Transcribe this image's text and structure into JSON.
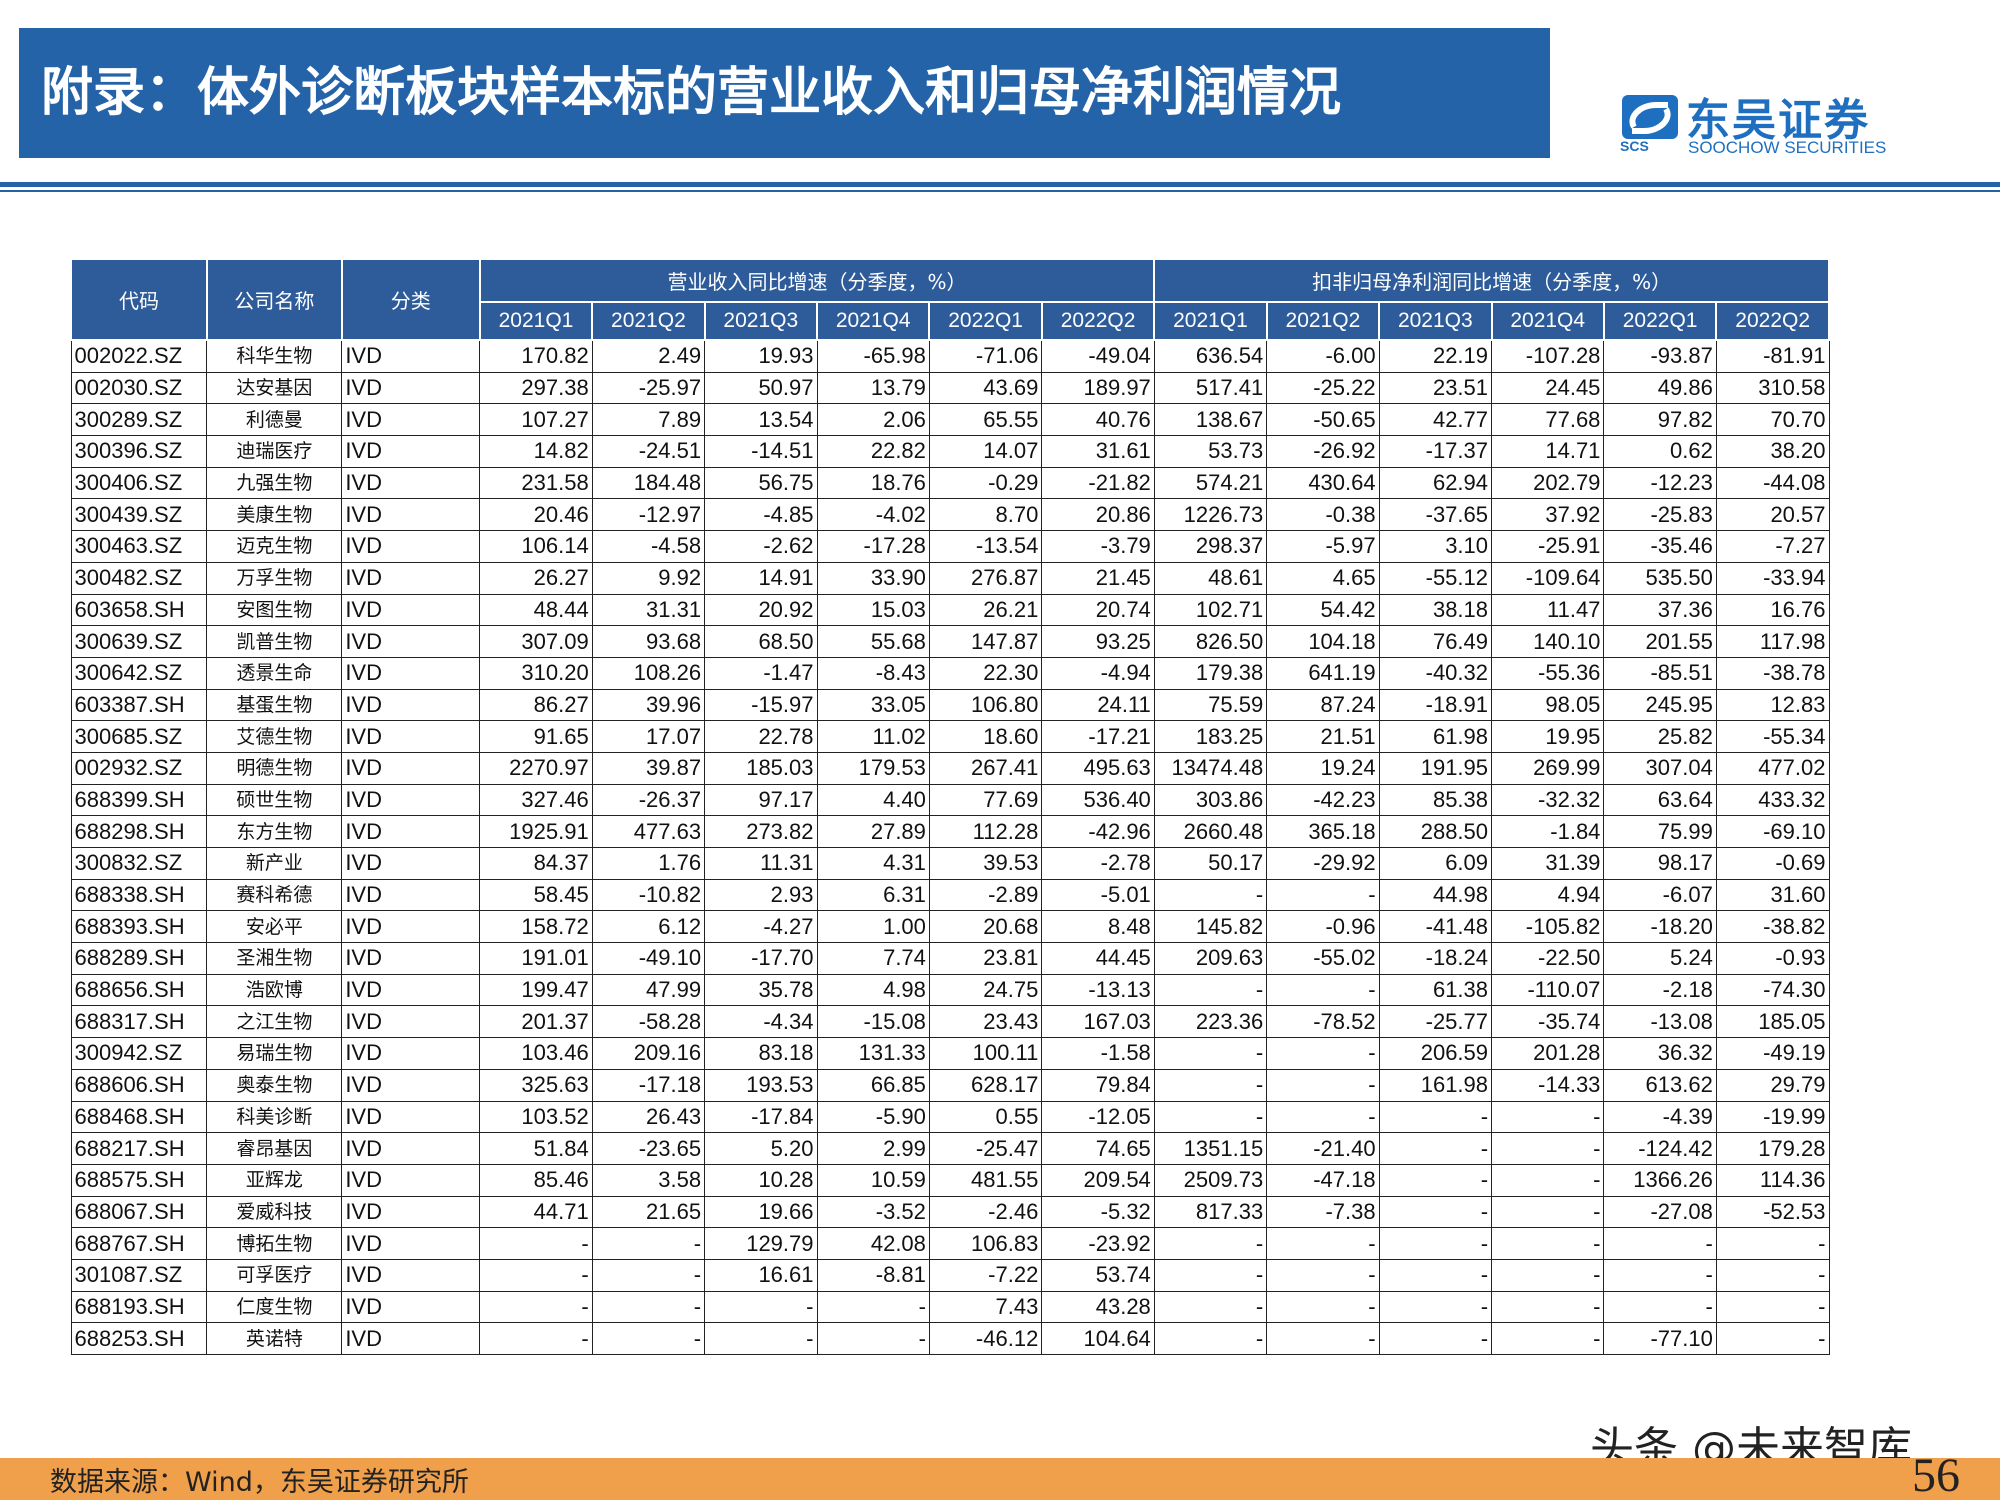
{
  "header": {
    "title": "附录：体外诊断板块样本标的营业收入和归母净利润情况",
    "logo_cn": "东吴证券",
    "logo_en": "SOOCHOW SECURITIES",
    "logo_abbr": "SCS",
    "brand_color": "#2563a8"
  },
  "table": {
    "col_code": "代码",
    "col_name": "公司名称",
    "col_category": "分类",
    "group_revenue": "营业收入同比增速（分季度，%）",
    "group_profit": "扣非归母净利润同比增速（分季度，%）",
    "quarters": [
      "2021Q1",
      "2021Q2",
      "2021Q3",
      "2021Q4",
      "2022Q1",
      "2022Q2"
    ],
    "rows": [
      {
        "code": "002022.SZ",
        "name": "科华生物",
        "cat": "IVD",
        "rev": [
          "170.82",
          "2.49",
          "19.93",
          "-65.98",
          "-71.06",
          "-49.04"
        ],
        "profit": [
          "636.54",
          "-6.00",
          "22.19",
          "-107.28",
          "-93.87",
          "-81.91"
        ]
      },
      {
        "code": "002030.SZ",
        "name": "达安基因",
        "cat": "IVD",
        "rev": [
          "297.38",
          "-25.97",
          "50.97",
          "13.79",
          "43.69",
          "189.97"
        ],
        "profit": [
          "517.41",
          "-25.22",
          "23.51",
          "24.45",
          "49.86",
          "310.58"
        ]
      },
      {
        "code": "300289.SZ",
        "name": "利德曼",
        "cat": "IVD",
        "rev": [
          "107.27",
          "7.89",
          "13.54",
          "2.06",
          "65.55",
          "40.76"
        ],
        "profit": [
          "138.67",
          "-50.65",
          "42.77",
          "77.68",
          "97.82",
          "70.70"
        ]
      },
      {
        "code": "300396.SZ",
        "name": "迪瑞医疗",
        "cat": "IVD",
        "rev": [
          "14.82",
          "-24.51",
          "-14.51",
          "22.82",
          "14.07",
          "31.61"
        ],
        "profit": [
          "53.73",
          "-26.92",
          "-17.37",
          "14.71",
          "0.62",
          "38.20"
        ]
      },
      {
        "code": "300406.SZ",
        "name": "九强生物",
        "cat": "IVD",
        "rev": [
          "231.58",
          "184.48",
          "56.75",
          "18.76",
          "-0.29",
          "-21.82"
        ],
        "profit": [
          "574.21",
          "430.64",
          "62.94",
          "202.79",
          "-12.23",
          "-44.08"
        ]
      },
      {
        "code": "300439.SZ",
        "name": "美康生物",
        "cat": "IVD",
        "rev": [
          "20.46",
          "-12.97",
          "-4.85",
          "-4.02",
          "8.70",
          "20.86"
        ],
        "profit": [
          "1226.73",
          "-0.38",
          "-37.65",
          "37.92",
          "-25.83",
          "20.57"
        ]
      },
      {
        "code": "300463.SZ",
        "name": "迈克生物",
        "cat": "IVD",
        "rev": [
          "106.14",
          "-4.58",
          "-2.62",
          "-17.28",
          "-13.54",
          "-3.79"
        ],
        "profit": [
          "298.37",
          "-5.97",
          "3.10",
          "-25.91",
          "-35.46",
          "-7.27"
        ]
      },
      {
        "code": "300482.SZ",
        "name": "万孚生物",
        "cat": "IVD",
        "rev": [
          "26.27",
          "9.92",
          "14.91",
          "33.90",
          "276.87",
          "21.45"
        ],
        "profit": [
          "48.61",
          "4.65",
          "-55.12",
          "-109.64",
          "535.50",
          "-33.94"
        ]
      },
      {
        "code": "603658.SH",
        "name": "安图生物",
        "cat": "IVD",
        "rev": [
          "48.44",
          "31.31",
          "20.92",
          "15.03",
          "26.21",
          "20.74"
        ],
        "profit": [
          "102.71",
          "54.42",
          "38.18",
          "11.47",
          "37.36",
          "16.76"
        ]
      },
      {
        "code": "300639.SZ",
        "name": "凯普生物",
        "cat": "IVD",
        "rev": [
          "307.09",
          "93.68",
          "68.50",
          "55.68",
          "147.87",
          "93.25"
        ],
        "profit": [
          "826.50",
          "104.18",
          "76.49",
          "140.10",
          "201.55",
          "117.98"
        ]
      },
      {
        "code": "300642.SZ",
        "name": "透景生命",
        "cat": "IVD",
        "rev": [
          "310.20",
          "108.26",
          "-1.47",
          "-8.43",
          "22.30",
          "-4.94"
        ],
        "profit": [
          "179.38",
          "641.19",
          "-40.32",
          "-55.36",
          "-85.51",
          "-38.78"
        ]
      },
      {
        "code": "603387.SH",
        "name": "基蛋生物",
        "cat": "IVD",
        "rev": [
          "86.27",
          "39.96",
          "-15.97",
          "33.05",
          "106.80",
          "24.11"
        ],
        "profit": [
          "75.59",
          "87.24",
          "-18.91",
          "98.05",
          "245.95",
          "12.83"
        ]
      },
      {
        "code": "300685.SZ",
        "name": "艾德生物",
        "cat": "IVD",
        "rev": [
          "91.65",
          "17.07",
          "22.78",
          "11.02",
          "18.60",
          "-17.21"
        ],
        "profit": [
          "183.25",
          "21.51",
          "61.98",
          "19.95",
          "25.82",
          "-55.34"
        ]
      },
      {
        "code": "002932.SZ",
        "name": "明德生物",
        "cat": "IVD",
        "rev": [
          "2270.97",
          "39.87",
          "185.03",
          "179.53",
          "267.41",
          "495.63"
        ],
        "profit": [
          "13474.48",
          "19.24",
          "191.95",
          "269.99",
          "307.04",
          "477.02"
        ]
      },
      {
        "code": "688399.SH",
        "name": "硕世生物",
        "cat": "IVD",
        "rev": [
          "327.46",
          "-26.37",
          "97.17",
          "4.40",
          "77.69",
          "536.40"
        ],
        "profit": [
          "303.86",
          "-42.23",
          "85.38",
          "-32.32",
          "63.64",
          "433.32"
        ]
      },
      {
        "code": "688298.SH",
        "name": "东方生物",
        "cat": "IVD",
        "rev": [
          "1925.91",
          "477.63",
          "273.82",
          "27.89",
          "112.28",
          "-42.96"
        ],
        "profit": [
          "2660.48",
          "365.18",
          "288.50",
          "-1.84",
          "75.99",
          "-69.10"
        ]
      },
      {
        "code": "300832.SZ",
        "name": "新产业",
        "cat": "IVD",
        "rev": [
          "84.37",
          "1.76",
          "11.31",
          "4.31",
          "39.53",
          "-2.78"
        ],
        "profit": [
          "50.17",
          "-29.92",
          "6.09",
          "31.39",
          "98.17",
          "-0.69"
        ]
      },
      {
        "code": "688338.SH",
        "name": "赛科希德",
        "cat": "IVD",
        "rev": [
          "58.45",
          "-10.82",
          "2.93",
          "6.31",
          "-2.89",
          "-5.01"
        ],
        "profit": [
          "-",
          "-",
          "44.98",
          "4.94",
          "-6.07",
          "31.60"
        ]
      },
      {
        "code": "688393.SH",
        "name": "安必平",
        "cat": "IVD",
        "rev": [
          "158.72",
          "6.12",
          "-4.27",
          "1.00",
          "20.68",
          "8.48"
        ],
        "profit": [
          "145.82",
          "-0.96",
          "-41.48",
          "-105.82",
          "-18.20",
          "-38.82"
        ]
      },
      {
        "code": "688289.SH",
        "name": "圣湘生物",
        "cat": "IVD",
        "rev": [
          "191.01",
          "-49.10",
          "-17.70",
          "7.74",
          "23.81",
          "44.45"
        ],
        "profit": [
          "209.63",
          "-55.02",
          "-18.24",
          "-22.50",
          "5.24",
          "-0.93"
        ]
      },
      {
        "code": "688656.SH",
        "name": "浩欧博",
        "cat": "IVD",
        "rev": [
          "199.47",
          "47.99",
          "35.78",
          "4.98",
          "24.75",
          "-13.13"
        ],
        "profit": [
          "-",
          "-",
          "61.38",
          "-110.07",
          "-2.18",
          "-74.30"
        ]
      },
      {
        "code": "688317.SH",
        "name": "之江生物",
        "cat": "IVD",
        "rev": [
          "201.37",
          "-58.28",
          "-4.34",
          "-15.08",
          "23.43",
          "167.03"
        ],
        "profit": [
          "223.36",
          "-78.52",
          "-25.77",
          "-35.74",
          "-13.08",
          "185.05"
        ]
      },
      {
        "code": "300942.SZ",
        "name": "易瑞生物",
        "cat": "IVD",
        "rev": [
          "103.46",
          "209.16",
          "83.18",
          "131.33",
          "100.11",
          "-1.58"
        ],
        "profit": [
          "-",
          "-",
          "206.59",
          "201.28",
          "36.32",
          "-49.19"
        ]
      },
      {
        "code": "688606.SH",
        "name": "奥泰生物",
        "cat": "IVD",
        "rev": [
          "325.63",
          "-17.18",
          "193.53",
          "66.85",
          "628.17",
          "79.84"
        ],
        "profit": [
          "-",
          "-",
          "161.98",
          "-14.33",
          "613.62",
          "29.79"
        ]
      },
      {
        "code": "688468.SH",
        "name": "科美诊断",
        "cat": "IVD",
        "rev": [
          "103.52",
          "26.43",
          "-17.84",
          "-5.90",
          "0.55",
          "-12.05"
        ],
        "profit": [
          "-",
          "-",
          "-",
          "-",
          "-4.39",
          "-19.99"
        ]
      },
      {
        "code": "688217.SH",
        "name": "睿昂基因",
        "cat": "IVD",
        "rev": [
          "51.84",
          "-23.65",
          "5.20",
          "2.99",
          "-25.47",
          "74.65"
        ],
        "profit": [
          "1351.15",
          "-21.40",
          "-",
          "-",
          "-124.42",
          "179.28"
        ]
      },
      {
        "code": "688575.SH",
        "name": "亚辉龙",
        "cat": "IVD",
        "rev": [
          "85.46",
          "3.58",
          "10.28",
          "10.59",
          "481.55",
          "209.54"
        ],
        "profit": [
          "2509.73",
          "-47.18",
          "-",
          "-",
          "1366.26",
          "114.36"
        ]
      },
      {
        "code": "688067.SH",
        "name": "爱威科技",
        "cat": "IVD",
        "rev": [
          "44.71",
          "21.65",
          "19.66",
          "-3.52",
          "-2.46",
          "-5.32"
        ],
        "profit": [
          "817.33",
          "-7.38",
          "-",
          "-",
          "-27.08",
          "-52.53"
        ]
      },
      {
        "code": "688767.SH",
        "name": "博拓生物",
        "cat": "IVD",
        "rev": [
          "-",
          "-",
          "129.79",
          "42.08",
          "106.83",
          "-23.92"
        ],
        "profit": [
          "-",
          "-",
          "-",
          "-",
          "-",
          "-"
        ]
      },
      {
        "code": "301087.SZ",
        "name": "可孚医疗",
        "cat": "IVD",
        "rev": [
          "-",
          "-",
          "16.61",
          "-8.81",
          "-7.22",
          "53.74"
        ],
        "profit": [
          "-",
          "-",
          "-",
          "-",
          "-",
          "-"
        ]
      },
      {
        "code": "688193.SH",
        "name": "仁度生物",
        "cat": "IVD",
        "rev": [
          "-",
          "-",
          "-",
          "-",
          "7.43",
          "43.28"
        ],
        "profit": [
          "-",
          "-",
          "-",
          "-",
          "-",
          "-"
        ]
      },
      {
        "code": "688253.SH",
        "name": "英诺特",
        "cat": "IVD",
        "rev": [
          "-",
          "-",
          "-",
          "-",
          "-46.12",
          "104.64"
        ],
        "profit": [
          "-",
          "-",
          "-",
          "-",
          "-77.10",
          "-"
        ]
      }
    ]
  },
  "footer": {
    "source": "数据来源：Wind，东吴证券研究所",
    "watermark": "头条 @未来智库",
    "page_number": "56",
    "footer_color": "#f0a04b"
  }
}
